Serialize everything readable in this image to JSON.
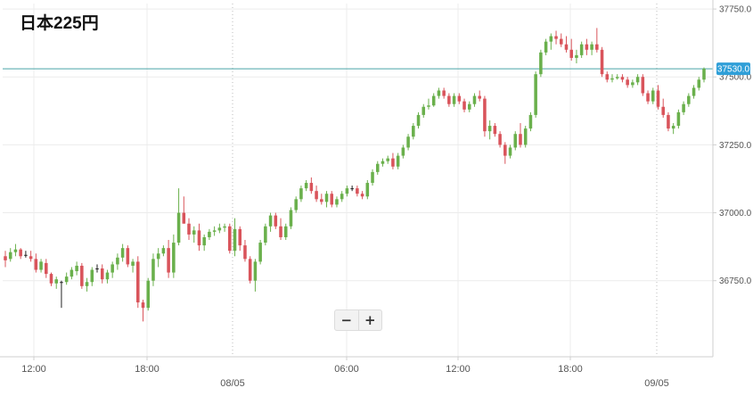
{
  "title": "日本225円",
  "zoom": {
    "minus_label": "−",
    "plus_label": "+"
  },
  "colors": {
    "up": "#6ab04c",
    "down": "#d9545b",
    "neutral": "#222222",
    "price_line": "#4aa5a6",
    "price_tag": "#2f9fd8",
    "grid": "#ececec",
    "axis": "#cfcfcf",
    "label": "#555555"
  },
  "chart_data": {
    "type": "candlestick",
    "instrument": "日本225円",
    "ylim": [
      36470,
      37770
    ],
    "yticks": [
      37750,
      37500,
      37250,
      37000,
      36750
    ],
    "ytick_labels": [
      "37750.0",
      "37500.0",
      "37250.0",
      "37000.0",
      "36750.0"
    ],
    "current_price": 37530.0,
    "current_price_label": "37530.0",
    "x_time_labels": [
      "12:00",
      "18:00",
      "06:00",
      "12:00",
      "18:00"
    ],
    "x_date_labels": [
      "08/05",
      "09/05"
    ],
    "grid": true,
    "ohlc": [
      [
        36840,
        36860,
        36800,
        36825
      ],
      [
        36830,
        36870,
        36820,
        36855
      ],
      [
        36855,
        36885,
        36840,
        36865
      ],
      [
        36865,
        36870,
        36830,
        36840
      ],
      [
        36845,
        36860,
        36835,
        36845
      ],
      [
        36840,
        36860,
        36820,
        36830
      ],
      [
        36830,
        36850,
        36780,
        36790
      ],
      [
        36790,
        36830,
        36780,
        36820
      ],
      [
        36815,
        36830,
        36760,
        36775
      ],
      [
        36775,
        36780,
        36730,
        36740
      ],
      [
        36740,
        36765,
        36720,
        36755
      ],
      [
        36745,
        36750,
        36650,
        36745
      ],
      [
        36745,
        36780,
        36735,
        36765
      ],
      [
        36765,
        36800,
        36755,
        36790
      ],
      [
        36785,
        36820,
        36770,
        36805
      ],
      [
        36805,
        36815,
        36720,
        36730
      ],
      [
        36730,
        36760,
        36710,
        36745
      ],
      [
        36745,
        36800,
        36730,
        36790
      ],
      [
        36795,
        36810,
        36780,
        36795
      ],
      [
        36795,
        36810,
        36740,
        36755
      ],
      [
        36755,
        36790,
        36740,
        36780
      ],
      [
        36780,
        36820,
        36760,
        36810
      ],
      [
        36810,
        36850,
        36790,
        36835
      ],
      [
        36835,
        36885,
        36820,
        36870
      ],
      [
        36870,
        36880,
        36800,
        36810
      ],
      [
        36805,
        36830,
        36780,
        36820
      ],
      [
        36820,
        36840,
        36650,
        36670
      ],
      [
        36670,
        36680,
        36600,
        36650
      ],
      [
        36650,
        36760,
        36640,
        36750
      ],
      [
        36750,
        36850,
        36730,
        36830
      ],
      [
        36830,
        36870,
        36800,
        36850
      ],
      [
        36850,
        36880,
        36840,
        36870
      ],
      [
        36870,
        36900,
        36760,
        36780
      ],
      [
        36780,
        36920,
        36760,
        36890
      ],
      [
        36890,
        37090,
        36880,
        37000
      ],
      [
        37000,
        37060,
        36960,
        36960
      ],
      [
        36960,
        36980,
        36900,
        36920
      ],
      [
        36920,
        36950,
        36890,
        36935
      ],
      [
        36935,
        36960,
        36860,
        36880
      ],
      [
        36880,
        36920,
        36860,
        36910
      ],
      [
        36910,
        36940,
        36900,
        36930
      ],
      [
        36930,
        36950,
        36915,
        36935
      ],
      [
        36935,
        36960,
        36925,
        36945
      ],
      [
        36945,
        36960,
        36930,
        36950
      ],
      [
        36950,
        36960,
        36850,
        36860
      ],
      [
        36860,
        36980,
        36840,
        36940
      ],
      [
        36940,
        36950,
        36860,
        36880
      ],
      [
        36880,
        36900,
        36820,
        36830
      ],
      [
        36830,
        36840,
        36740,
        36750
      ],
      [
        36750,
        36830,
        36710,
        36820
      ],
      [
        36820,
        36900,
        36810,
        36890
      ],
      [
        36890,
        36960,
        36880,
        36950
      ],
      [
        36950,
        37000,
        36930,
        36990
      ],
      [
        36990,
        37000,
        36940,
        36950
      ],
      [
        36950,
        36980,
        36900,
        36910
      ],
      [
        36910,
        36960,
        36900,
        36950
      ],
      [
        36950,
        37020,
        36940,
        37010
      ],
      [
        37010,
        37060,
        37000,
        37050
      ],
      [
        37050,
        37100,
        37040,
        37090
      ],
      [
        37090,
        37120,
        37080,
        37110
      ],
      [
        37110,
        37130,
        37070,
        37080
      ],
      [
        37080,
        37100,
        37040,
        37050
      ],
      [
        37050,
        37070,
        37030,
        37040
      ],
      [
        37040,
        37080,
        37020,
        37070
      ],
      [
        37070,
        37080,
        37020,
        37030
      ],
      [
        37030,
        37060,
        37020,
        37050
      ],
      [
        37050,
        37080,
        37040,
        37070
      ],
      [
        37070,
        37100,
        37060,
        37090
      ],
      [
        37090,
        37100,
        37080,
        37090
      ],
      [
        37090,
        37100,
        37060,
        37070
      ],
      [
        37070,
        37080,
        37050,
        37060
      ],
      [
        37060,
        37120,
        37050,
        37110
      ],
      [
        37110,
        37160,
        37100,
        37150
      ],
      [
        37150,
        37190,
        37140,
        37180
      ],
      [
        37180,
        37200,
        37170,
        37190
      ],
      [
        37190,
        37210,
        37180,
        37200
      ],
      [
        37200,
        37220,
        37160,
        37170
      ],
      [
        37170,
        37220,
        37160,
        37210
      ],
      [
        37210,
        37250,
        37200,
        37240
      ],
      [
        37240,
        37290,
        37230,
        37280
      ],
      [
        37280,
        37330,
        37270,
        37320
      ],
      [
        37320,
        37370,
        37310,
        37360
      ],
      [
        37360,
        37400,
        37350,
        37390
      ],
      [
        37390,
        37420,
        37380,
        37395
      ],
      [
        37395,
        37440,
        37390,
        37430
      ],
      [
        37430,
        37460,
        37420,
        37450
      ],
      [
        37450,
        37460,
        37420,
        37430
      ],
      [
        37430,
        37440,
        37390,
        37400
      ],
      [
        37400,
        37440,
        37390,
        37430
      ],
      [
        37430,
        37440,
        37400,
        37410
      ],
      [
        37410,
        37420,
        37370,
        37380
      ],
      [
        37380,
        37410,
        37370,
        37400
      ],
      [
        37400,
        37440,
        37390,
        37430
      ],
      [
        37430,
        37450,
        37410,
        37420
      ],
      [
        37420,
        37430,
        37280,
        37300
      ],
      [
        37300,
        37340,
        37270,
        37320
      ],
      [
        37320,
        37330,
        37280,
        37290
      ],
      [
        37290,
        37300,
        37240,
        37250
      ],
      [
        37250,
        37260,
        37180,
        37210
      ],
      [
        37210,
        37250,
        37200,
        37240
      ],
      [
        37240,
        37300,
        37230,
        37290
      ],
      [
        37290,
        37330,
        37240,
        37250
      ],
      [
        37250,
        37320,
        37240,
        37310
      ],
      [
        37310,
        37370,
        37300,
        37360
      ],
      [
        37360,
        37520,
        37350,
        37510
      ],
      [
        37510,
        37600,
        37500,
        37590
      ],
      [
        37590,
        37640,
        37580,
        37630
      ],
      [
        37630,
        37660,
        37600,
        37650
      ],
      [
        37650,
        37670,
        37620,
        37640
      ],
      [
        37640,
        37660,
        37610,
        37620
      ],
      [
        37620,
        37650,
        37590,
        37600
      ],
      [
        37600,
        37640,
        37560,
        37570
      ],
      [
        37570,
        37600,
        37550,
        37580
      ],
      [
        37580,
        37630,
        37570,
        37620
      ],
      [
        37620,
        37640,
        37580,
        37600
      ],
      [
        37600,
        37630,
        37580,
        37620
      ],
      [
        37620,
        37680,
        37590,
        37600
      ],
      [
        37600,
        37610,
        37500,
        37510
      ],
      [
        37510,
        37520,
        37480,
        37490
      ],
      [
        37490,
        37510,
        37480,
        37495
      ],
      [
        37495,
        37510,
        37490,
        37500
      ],
      [
        37500,
        37510,
        37480,
        37490
      ],
      [
        37490,
        37500,
        37460,
        37470
      ],
      [
        37470,
        37490,
        37460,
        37480
      ],
      [
        37480,
        37510,
        37470,
        37500
      ],
      [
        37500,
        37510,
        37430,
        37440
      ],
      [
        37440,
        37450,
        37400,
        37410
      ],
      [
        37410,
        37460,
        37400,
        37450
      ],
      [
        37450,
        37470,
        37380,
        37390
      ],
      [
        37390,
        37420,
        37350,
        37360
      ],
      [
        37360,
        37370,
        37300,
        37310
      ],
      [
        37310,
        37330,
        37290,
        37320
      ],
      [
        37320,
        37380,
        37310,
        37370
      ],
      [
        37370,
        37410,
        37360,
        37400
      ],
      [
        37400,
        37440,
        37390,
        37430
      ],
      [
        37430,
        37470,
        37420,
        37460
      ],
      [
        37460,
        37500,
        37450,
        37490
      ],
      [
        37490,
        37535,
        37480,
        37530
      ]
    ]
  }
}
